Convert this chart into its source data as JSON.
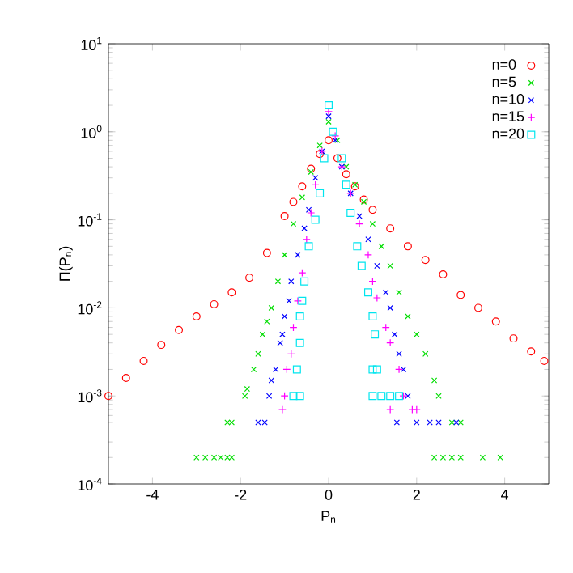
{
  "chart_data": {
    "type": "scatter",
    "xlabel": "P$_{n}$",
    "ylabel": "Π(P$_{n}$)",
    "log": "y",
    "xlim": [
      -5,
      5
    ],
    "xticks": [
      -4,
      -2,
      0,
      2,
      4
    ],
    "ylim": [
      0.0001,
      10
    ],
    "yticks": [
      {
        "value": 0.0001,
        "label": "10$^{-4}$"
      },
      {
        "value": 0.001,
        "label": "10$^{-3}$"
      },
      {
        "value": 0.01,
        "label": "10$^{-2}$"
      },
      {
        "value": 0.1,
        "label": "10$^{-1}$"
      },
      {
        "value": 1,
        "label": "10$^{0}$"
      },
      {
        "value": 10,
        "label": "10$^{1}$"
      }
    ],
    "legend": "top right",
    "grid": false,
    "series": [
      {
        "name": "n=0",
        "color": "#ff0000",
        "marker": "circle",
        "x": [
          -5,
          -4.6,
          -4.2,
          -3.8,
          -3.4,
          -3.0,
          -2.6,
          -2.2,
          -1.8,
          -1.4,
          -1.0,
          -0.8,
          -0.6,
          -0.4,
          -0.2,
          0,
          0.2,
          0.4,
          0.6,
          0.8,
          1.0,
          1.4,
          1.8,
          2.2,
          2.6,
          3.0,
          3.4,
          3.8,
          4.2,
          4.6,
          4.9
        ],
        "values": [
          0.001,
          0.0016,
          0.0025,
          0.0038,
          0.0056,
          0.008,
          0.011,
          0.015,
          0.022,
          0.042,
          0.11,
          0.16,
          0.24,
          0.38,
          0.56,
          0.8,
          0.5,
          0.33,
          0.24,
          0.17,
          0.13,
          0.08,
          0.05,
          0.035,
          0.024,
          0.014,
          0.01,
          0.007,
          0.0045,
          0.0032,
          0.0025
        ]
      },
      {
        "name": "n=5",
        "color": "#00dd00",
        "marker": "cross",
        "x": [
          -3.0,
          -2.8,
          -2.6,
          -2.45,
          -2.3,
          -2.2,
          -2.3,
          -2.2,
          -1.9,
          -1.85,
          -1.7,
          -1.6,
          -1.5,
          -1.4,
          -1.3,
          -1.15,
          -1.0,
          -0.8,
          -0.6,
          -0.4,
          -0.2,
          0,
          0.2,
          0.4,
          0.6,
          0.8,
          1.0,
          1.2,
          1.4,
          1.6,
          1.8,
          2.0,
          2.2,
          2.4,
          2.5,
          2.8,
          3.0,
          2.4,
          2.6,
          2.8,
          3.0,
          3.5,
          3.9
        ],
        "values": [
          0.0002,
          0.0002,
          0.0002,
          0.0002,
          0.0002,
          0.0002,
          0.0005,
          0.0005,
          0.001,
          0.0012,
          0.002,
          0.003,
          0.005,
          0.007,
          0.01,
          0.02,
          0.04,
          0.09,
          0.18,
          0.35,
          0.7,
          1.3,
          0.8,
          0.4,
          0.25,
          0.16,
          0.09,
          0.05,
          0.03,
          0.015,
          0.008,
          0.005,
          0.003,
          0.0015,
          0.001,
          0.0005,
          0.0005,
          0.0002,
          0.0002,
          0.0002,
          0.0002,
          0.0002,
          0.0002
        ]
      },
      {
        "name": "n=10",
        "color": "#0000ff",
        "marker": "cross",
        "x": [
          -1.6,
          -1.45,
          -1.35,
          -1.3,
          -1.2,
          -1.1,
          -1.05,
          -1.0,
          -0.9,
          -0.85,
          -0.7,
          -0.55,
          -0.45,
          -0.3,
          -0.15,
          0,
          0.15,
          0.3,
          0.5,
          0.7,
          0.9,
          1.1,
          1.3,
          1.4,
          1.5,
          1.6,
          1.7,
          1.8,
          1.55,
          2.0,
          2.3,
          2.5,
          2.9
        ],
        "values": [
          0.0005,
          0.0005,
          0.001,
          0.0015,
          0.002,
          0.004,
          0.005,
          0.008,
          0.012,
          0.02,
          0.04,
          0.08,
          0.13,
          0.3,
          0.6,
          1.5,
          0.8,
          0.4,
          0.2,
          0.11,
          0.06,
          0.03,
          0.015,
          0.01,
          0.005,
          0.003,
          0.002,
          0.001,
          0.0005,
          0.0005,
          0.0005,
          0.0005,
          0.0005
        ]
      },
      {
        "name": "n=15",
        "color": "#ff00ff",
        "marker": "plus",
        "x": [
          -1.05,
          -1.0,
          -0.95,
          -0.85,
          -0.8,
          -0.7,
          -0.6,
          -0.5,
          -0.4,
          -0.3,
          -0.15,
          0,
          0.15,
          0.3,
          0.5,
          0.7,
          0.9,
          1.0,
          1.1,
          1.3,
          1.4,
          1.6,
          1.7,
          1.4,
          1.9,
          2.0
        ],
        "values": [
          0.0007,
          0.001,
          0.002,
          0.003,
          0.006,
          0.012,
          0.025,
          0.06,
          0.12,
          0.25,
          0.6,
          1.7,
          0.9,
          0.4,
          0.2,
          0.09,
          0.04,
          0.02,
          0.013,
          0.006,
          0.004,
          0.002,
          0.001,
          0.0007,
          0.0007,
          0.0007
        ]
      },
      {
        "name": "n=20",
        "color": "#00e5ee",
        "marker": "square",
        "x": [
          -0.8,
          -0.65,
          -0.72,
          -0.65,
          -0.65,
          -0.6,
          -0.55,
          -0.45,
          -0.3,
          -0.2,
          -0.1,
          0,
          0.1,
          0.3,
          0.4,
          0.5,
          0.65,
          0.75,
          0.9,
          1.0,
          1.05,
          1.0,
          1.1,
          1.0,
          1.2,
          1.4,
          1.6
        ],
        "values": [
          0.001,
          0.001,
          0.002,
          0.004,
          0.008,
          0.012,
          0.02,
          0.05,
          0.1,
          0.2,
          0.5,
          2.0,
          1.0,
          0.5,
          0.25,
          0.12,
          0.05,
          0.03,
          0.015,
          0.008,
          0.005,
          0.002,
          0.002,
          0.001,
          0.001,
          0.001,
          0.001
        ]
      }
    ]
  }
}
